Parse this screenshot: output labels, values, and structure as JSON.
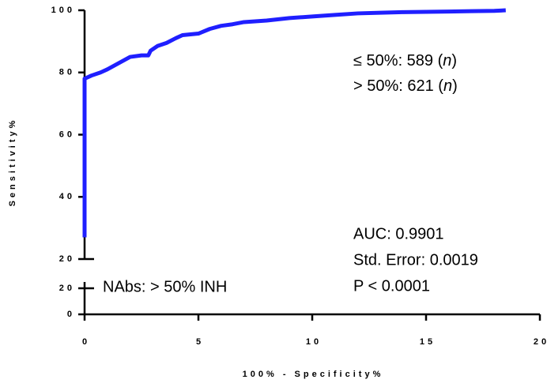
{
  "chart_data": {
    "type": "line",
    "xlabel": "100% - Specificity%",
    "ylabel": "Sensitivity%",
    "xlim": [
      0,
      20
    ],
    "xticks": [
      0,
      5,
      10,
      15,
      20
    ],
    "ylim": [
      20,
      100
    ],
    "yticks": [
      20,
      40,
      60,
      80,
      100
    ],
    "ylim_lower": [
      0,
      20
    ],
    "yticks_lower": [
      0,
      20
    ],
    "series": [
      {
        "color": "#1f1fff",
        "x": [
          0,
          0,
          0.3,
          0.7,
          1,
          1.5,
          2,
          2.5,
          2.8,
          2.9,
          3.2,
          3.6,
          4,
          4.3,
          5,
          5.5,
          6,
          6.5,
          7,
          8,
          9,
          10,
          11,
          12,
          13,
          14,
          15,
          16,
          17,
          18,
          18.5
        ],
        "values": [
          27,
          78,
          79,
          80,
          81,
          83,
          85,
          85.5,
          85.5,
          87,
          88.5,
          89.5,
          91,
          92,
          92.5,
          94,
          95,
          95.5,
          96.2,
          96.7,
          97.5,
          98,
          98.5,
          99,
          99.2,
          99.4,
          99.5,
          99.6,
          99.7,
          99.8,
          100
        ]
      }
    ],
    "legend_annotations": [
      {
        "prefix": "≤ 50%: 589 (",
        "italic": "n",
        "suffix": ")"
      },
      {
        "prefix": "> 50%: 621 (",
        "italic": "n",
        "suffix": ")"
      }
    ],
    "stats_annotations": [
      "AUC: 0.9901",
      "Std. Error: 0.0019",
      "P < 0.0001"
    ],
    "group_annotation": "NAbs: > 50% INH"
  }
}
